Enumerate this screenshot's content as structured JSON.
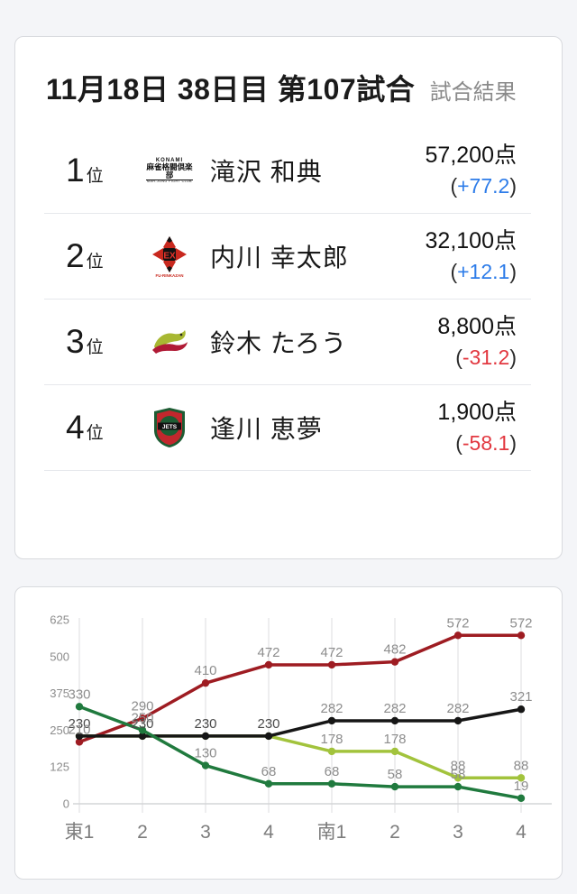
{
  "page": {
    "background": "#f4f5f8"
  },
  "result_card": {
    "title": "11月18日 38日目 第107試合",
    "subtitle": "試合結果",
    "delta_format": {
      "open": "(",
      "close": ")"
    },
    "rankings": [
      {
        "rank": "1",
        "rank_suffix": "位",
        "team": "KONAMI麻雀格闘倶楽部",
        "player": "滝沢 和典",
        "score": "57,200",
        "score_suffix": "点",
        "delta": "+77.2",
        "delta_color": "#2d7ce9"
      },
      {
        "rank": "2",
        "rank_suffix": "位",
        "team": "EX風林火山",
        "player": "内川 幸太郎",
        "score": "32,100",
        "score_suffix": "点",
        "delta": "+12.1",
        "delta_color": "#2d7ce9"
      },
      {
        "rank": "3",
        "rank_suffix": "位",
        "team": "ドラゴンズ",
        "player": "鈴木 たろう",
        "score": "8,800",
        "score_suffix": "点",
        "delta": "-31.2",
        "delta_color": "#e23840"
      },
      {
        "rank": "4",
        "rank_suffix": "位",
        "team": "JETS",
        "player": "逢川 恵夢",
        "score": "1,900",
        "score_suffix": "点",
        "delta": "-58.1",
        "delta_color": "#e23840"
      }
    ],
    "team_logo_text": {
      "konami_line1": "KONAMI",
      "konami_line2": "麻雀格闘倶楽部",
      "konami_line3": "MAH-JONG FIGHT CLUB",
      "ex_center": "EX",
      "ex_caption": "FU-RINKAZAN",
      "jets_label": "JETS"
    }
  },
  "chart_card": {
    "chart_data": {
      "type": "line",
      "x_labels": [
        "東1",
        "2",
        "3",
        "4",
        "南1",
        "2",
        "3",
        "4"
      ],
      "y_ticks": [
        0,
        125,
        250,
        375,
        500,
        625
      ],
      "ylim": [
        0,
        625
      ],
      "grid": "vertical-only",
      "legend_position": "none",
      "series": [
        {
          "name": "鈴木 たろう",
          "color": "#a2c33c",
          "values": [
            230,
            230,
            230,
            230,
            178,
            178,
            88,
            88
          ]
        },
        {
          "name": "滝沢 和典",
          "color": "#9e1c22",
          "values": [
            210,
            290,
            410,
            472,
            472,
            482,
            572,
            572
          ]
        },
        {
          "name": "内川 幸太郎",
          "color": "#161616",
          "values": [
            230,
            230,
            230,
            230,
            282,
            282,
            282,
            321
          ]
        },
        {
          "name": "逢川 恵夢",
          "color": "#207a3e",
          "values": [
            330,
            250,
            130,
            68,
            68,
            58,
            58,
            19
          ]
        }
      ],
      "colors": {
        "gridline": "#dcdddf",
        "axis_line": "#d4d5d7",
        "tick_label": "#8c8c8c",
        "x_label": "#7c7c7c",
        "point_label": "#8d8d8d",
        "point_label_overlap": "#4a4a4a"
      }
    }
  }
}
